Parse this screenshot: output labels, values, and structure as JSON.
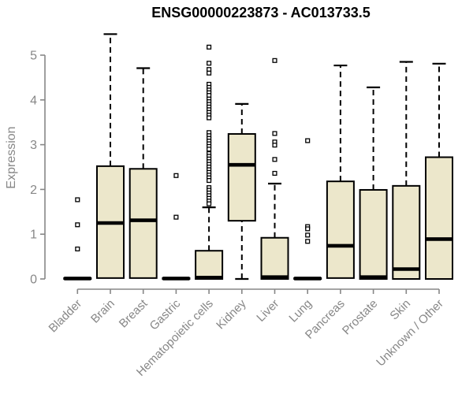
{
  "colors": {
    "box_fill": "#ece7cb",
    "box_border": "#000000",
    "median": "#000000",
    "whisker": "#000000",
    "axis": "#878787",
    "tick_label": "#878787",
    "title": "#000000",
    "background": "#ffffff"
  },
  "chart_data": {
    "type": "boxplot",
    "title": "ENSG00000223873 - AC013733.5",
    "ylabel": "Expression",
    "xlabel": "",
    "ylim": [
      0,
      5
    ],
    "yticks": [
      0,
      1,
      2,
      3,
      4,
      5
    ],
    "grid": false,
    "legend": false,
    "categories": [
      "Bladder",
      "Brain",
      "Breast",
      "Gastric",
      "Hematopoietic cells",
      "Kidney",
      "Liver",
      "Lung",
      "Pancreas",
      "Prostate",
      "Skin",
      "Unknown / Other"
    ],
    "series": [
      {
        "name": "Bladder",
        "whisker_low": 0,
        "q1": 0,
        "median": 0.01,
        "q3": 0.02,
        "whisker_high": 0.02,
        "outliers": [
          1.77,
          1.21,
          0.67
        ]
      },
      {
        "name": "Brain",
        "whisker_low": 0,
        "q1": 0.02,
        "median": 1.25,
        "q3": 2.52,
        "whisker_high": 5.47,
        "outliers": []
      },
      {
        "name": "Breast",
        "whisker_low": 0,
        "q1": 0.02,
        "median": 1.31,
        "q3": 2.46,
        "whisker_high": 4.71,
        "outliers": []
      },
      {
        "name": "Gastric",
        "whisker_low": 0,
        "q1": 0,
        "median": 0.01,
        "q3": 0.02,
        "whisker_high": 0.02,
        "outliers": [
          2.31,
          1.38
        ]
      },
      {
        "name": "Hematopoietic cells",
        "whisker_low": 0,
        "q1": 0,
        "median": 0.03,
        "q3": 0.63,
        "whisker_high": 1.6,
        "outliers": [
          5.18,
          4.82,
          4.68,
          4.6,
          4.35,
          4.28,
          4.22,
          4.16,
          4.1,
          4.02,
          3.96,
          3.9,
          3.84,
          3.78,
          3.72,
          3.66,
          3.6,
          3.27,
          3.2,
          3.14,
          3.08,
          3.02,
          2.96,
          2.9,
          2.8,
          2.74,
          2.68,
          2.62,
          2.56,
          2.5,
          2.44,
          2.38,
          2.32,
          2.26,
          2.2,
          2.04,
          1.98,
          1.92,
          1.86,
          1.8,
          1.74,
          1.68
        ]
      },
      {
        "name": "Kidney",
        "whisker_low": 0,
        "q1": 1.3,
        "median": 2.55,
        "q3": 3.24,
        "whisker_high": 3.91,
        "outliers": []
      },
      {
        "name": "Liver",
        "whisker_low": 0,
        "q1": 0,
        "median": 0.04,
        "q3": 0.92,
        "whisker_high": 2.13,
        "outliers": [
          4.88,
          3.25,
          3.06,
          2.99,
          2.67,
          2.36
        ]
      },
      {
        "name": "Lung",
        "whisker_low": 0,
        "q1": 0,
        "median": 0.01,
        "q3": 0.02,
        "whisker_high": 0.02,
        "outliers": [
          3.09,
          1.17,
          1.12,
          0.98,
          0.84
        ]
      },
      {
        "name": "Pancreas",
        "whisker_low": 0,
        "q1": 0.02,
        "median": 0.74,
        "q3": 2.18,
        "whisker_high": 4.77,
        "outliers": []
      },
      {
        "name": "Prostate",
        "whisker_low": 0,
        "q1": 0,
        "median": 0.04,
        "q3": 1.99,
        "whisker_high": 4.28,
        "outliers": []
      },
      {
        "name": "Skin",
        "whisker_low": 0,
        "q1": 0,
        "median": 0.22,
        "q3": 2.08,
        "whisker_high": 4.85,
        "outliers": []
      },
      {
        "name": "Unknown / Other",
        "whisker_low": 0,
        "q1": 0,
        "median": 0.89,
        "q3": 2.72,
        "whisker_high": 4.81,
        "outliers": []
      }
    ]
  }
}
